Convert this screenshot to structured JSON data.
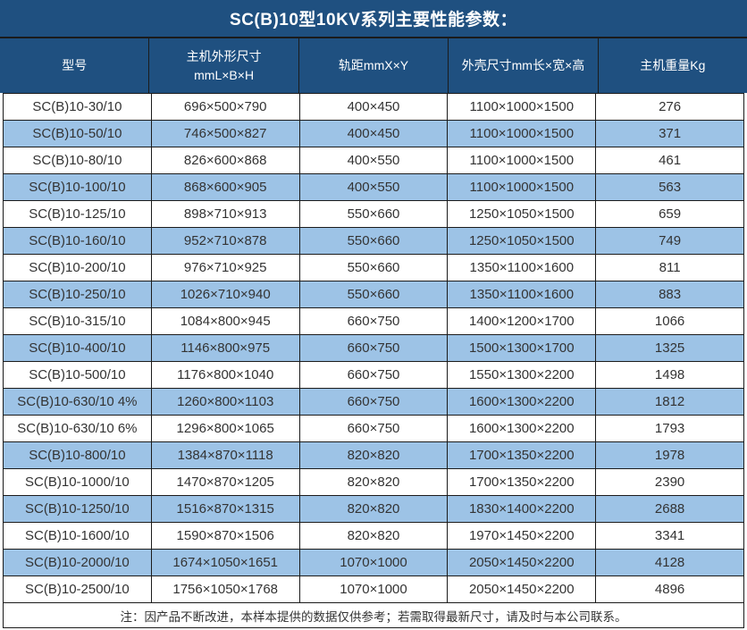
{
  "title": "SC(B)10型10KV系列主要性能参数：",
  "colors": {
    "title_bar_bg": "#1F5080",
    "header_bg": "#1F5080",
    "row_alt_bg": "#9DC3E6",
    "row_bg": "#FFFFFF",
    "border": "#1B1B1B",
    "header_text": "#FFFFFF",
    "body_text": "#333333"
  },
  "table": {
    "columns": [
      {
        "label": "型号"
      },
      {
        "label": "主机外形尺寸",
        "label2": "mmL×B×H"
      },
      {
        "label": "轨距mmX×Y"
      },
      {
        "label": "外壳尺寸mm长×宽×高"
      },
      {
        "label": "主机重量Kg"
      }
    ],
    "rows": [
      [
        "SC(B)10-30/10",
        "696×500×790",
        "400×450",
        "1100×1000×1500",
        "276"
      ],
      [
        "SC(B)10-50/10",
        "746×500×827",
        "400×450",
        "1100×1000×1500",
        "371"
      ],
      [
        "SC(B)10-80/10",
        "826×600×868",
        "400×550",
        "1100×1000×1500",
        "461"
      ],
      [
        "SC(B)10-100/10",
        "868×600×905",
        "400×550",
        "1100×1000×1500",
        "563"
      ],
      [
        "SC(B)10-125/10",
        "898×710×913",
        "550×660",
        "1250×1050×1500",
        "659"
      ],
      [
        "SC(B)10-160/10",
        "952×710×878",
        "550×660",
        "1250×1050×1500",
        "749"
      ],
      [
        "SC(B)10-200/10",
        "976×710×925",
        "550×660",
        "1350×1100×1600",
        "811"
      ],
      [
        "SC(B)10-250/10",
        "1026×710×940",
        "550×660",
        "1350×1100×1600",
        "883"
      ],
      [
        "SC(B)10-315/10",
        "1084×800×945",
        "660×750",
        "1400×1200×1700",
        "1066"
      ],
      [
        "SC(B)10-400/10",
        "1146×800×975",
        "660×750",
        "1500×1300×1700",
        "1325"
      ],
      [
        "SC(B)10-500/10",
        "1176×800×1040",
        "660×750",
        "1550×1300×2200",
        "1498"
      ],
      [
        "SC(B)10-630/10 4%",
        "1260×800×1103",
        "660×750",
        "1600×1300×2200",
        "1812"
      ],
      [
        "SC(B)10-630/10 6%",
        "1296×800×1065",
        "660×750",
        "1600×1300×2200",
        "1793"
      ],
      [
        "SC(B)10-800/10",
        "1384×870×1118",
        "820×820",
        "1700×1350×2200",
        "1978"
      ],
      [
        "SC(B)10-1000/10",
        "1470×870×1205",
        "820×820",
        "1700×1350×2200",
        "2390"
      ],
      [
        "SC(B)10-1250/10",
        "1516×870×1315",
        "820×820",
        "1830×1400×2200",
        "2688"
      ],
      [
        "SC(B)10-1600/10",
        "1590×870×1506",
        "820×820",
        "1970×1450×2200",
        "3341"
      ],
      [
        "SC(B)10-2000/10",
        "1674×1050×1651",
        "1070×1000",
        "2050×1450×2200",
        "4128"
      ],
      [
        "SC(B)10-2500/10",
        "1756×1050×1768",
        "1070×1000",
        "2050×1450×2200",
        "4896"
      ]
    ]
  },
  "footer": {
    "note": "注：因产品不断改进，本样本提供的数据仅供参考；若需取得最新尺寸，请及时与本公司联系。"
  }
}
